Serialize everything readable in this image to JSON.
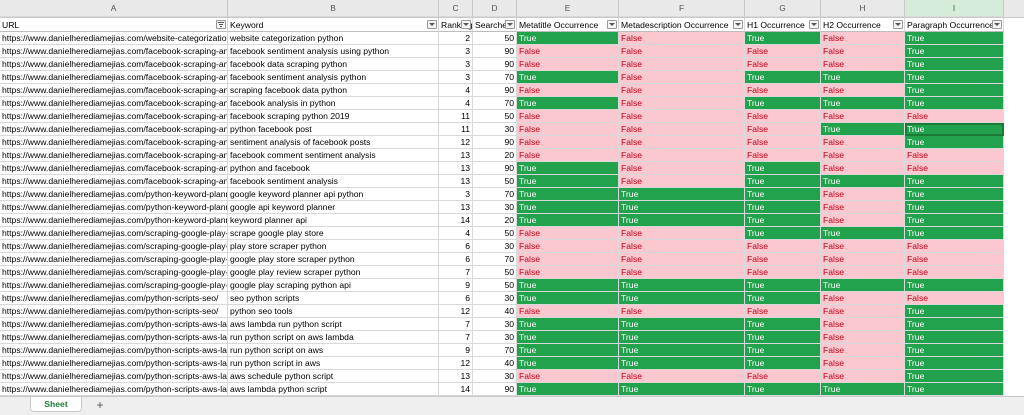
{
  "columns": [
    "A",
    "B",
    "C",
    "D",
    "E",
    "F",
    "G",
    "H",
    "I"
  ],
  "selected_column": "I",
  "headers": [
    "URL",
    "Keyword",
    "Ranking",
    "Searches",
    "Metatitle Occurrence",
    "Metadescription Occurrence",
    "H1 Occurrence",
    "H2 Occurrence",
    "Paragraph Occurrence"
  ],
  "rows": [
    [
      "https://www.danielherediamejias.com/website-categorization-python/",
      "website categorization python",
      "2",
      "50",
      "True",
      "False",
      "True",
      "False",
      "True"
    ],
    [
      "https://www.danielherediamejias.com/facebook-scraping-and-sentiment-analysis-with-python/",
      "facebook sentiment analysis using python",
      "3",
      "90",
      "False",
      "False",
      "False",
      "False",
      "True"
    ],
    [
      "https://www.danielherediamejias.com/facebook-scraping-and-sentiment-analysis-with-python/",
      "facebook data scraping python",
      "3",
      "90",
      "False",
      "False",
      "False",
      "False",
      "True"
    ],
    [
      "https://www.danielherediamejias.com/facebook-scraping-and-sentiment-analysis-with-python/",
      "facebook sentiment analysis python",
      "3",
      "70",
      "True",
      "False",
      "True",
      "True",
      "True"
    ],
    [
      "https://www.danielherediamejias.com/facebook-scraping-and-sentiment-analysis-with-python/",
      "scraping facebook data python",
      "4",
      "90",
      "False",
      "False",
      "False",
      "False",
      "True"
    ],
    [
      "https://www.danielherediamejias.com/facebook-scraping-and-sentiment-analysis-with-python/",
      "facebook analysis in python",
      "4",
      "70",
      "True",
      "False",
      "True",
      "True",
      "True"
    ],
    [
      "https://www.danielherediamejias.com/facebook-scraping-and-sentiment-analysis-with-python/",
      "facebook scraping python 2019",
      "11",
      "50",
      "False",
      "False",
      "False",
      "False",
      "False"
    ],
    [
      "https://www.danielherediamejias.com/facebook-scraping-and-sentiment-analysis-with-python/",
      "python facebook post",
      "11",
      "30",
      "False",
      "False",
      "False",
      "True",
      "True"
    ],
    [
      "https://www.danielherediamejias.com/facebook-scraping-and-sentiment-analysis-with-python/",
      "sentiment analysis of facebook posts",
      "12",
      "90",
      "False",
      "False",
      "False",
      "False",
      "True"
    ],
    [
      "https://www.danielherediamejias.com/facebook-scraping-and-sentiment-analysis-with-python/",
      "facebook comment sentiment analysis",
      "13",
      "20",
      "False",
      "False",
      "False",
      "False",
      "False"
    ],
    [
      "https://www.danielherediamejias.com/facebook-scraping-and-sentiment-analysis-with-python/",
      "python and facebook",
      "13",
      "90",
      "True",
      "False",
      "True",
      "False",
      "False"
    ],
    [
      "https://www.danielherediamejias.com/facebook-scraping-and-sentiment-analysis-with-python/",
      "facebook sentiment analysis",
      "13",
      "50",
      "True",
      "False",
      "True",
      "True",
      "True"
    ],
    [
      "https://www.danielherediamejias.com/python-keyword-planner/",
      "google keyword planner api python",
      "3",
      "70",
      "True",
      "True",
      "True",
      "False",
      "True"
    ],
    [
      "https://www.danielherediamejias.com/python-keyword-planner/",
      "google api keyword planner",
      "13",
      "30",
      "True",
      "True",
      "True",
      "False",
      "True"
    ],
    [
      "https://www.danielherediamejias.com/python-keyword-planner/",
      "keyword planner api",
      "14",
      "20",
      "True",
      "True",
      "True",
      "False",
      "True"
    ],
    [
      "https://www.danielherediamejias.com/scraping-google-play-store/",
      "scrape google play store",
      "4",
      "50",
      "False",
      "False",
      "True",
      "True",
      "True"
    ],
    [
      "https://www.danielherediamejias.com/scraping-google-play-store/",
      "play store scraper python",
      "6",
      "30",
      "False",
      "False",
      "False",
      "False",
      "False"
    ],
    [
      "https://www.danielherediamejias.com/scraping-google-play-store/",
      "google play store scraper python",
      "6",
      "70",
      "False",
      "False",
      "False",
      "False",
      "False"
    ],
    [
      "https://www.danielherediamejias.com/scraping-google-play-store/",
      "google play review scraper python",
      "7",
      "50",
      "False",
      "False",
      "False",
      "False",
      "False"
    ],
    [
      "https://www.danielherediamejias.com/scraping-google-play-store/",
      "google play scraping python api",
      "9",
      "50",
      "True",
      "True",
      "True",
      "True",
      "True"
    ],
    [
      "https://www.danielherediamejias.com/python-scripts-seo/",
      "seo python scripts",
      "6",
      "30",
      "True",
      "True",
      "True",
      "False",
      "False"
    ],
    [
      "https://www.danielherediamejias.com/python-scripts-seo/",
      "python seo tools",
      "12",
      "40",
      "False",
      "False",
      "False",
      "False",
      "True"
    ],
    [
      "https://www.danielherediamejias.com/python-scripts-aws-lambda/",
      "aws lambda run python script",
      "7",
      "30",
      "True",
      "True",
      "True",
      "False",
      "True"
    ],
    [
      "https://www.danielherediamejias.com/python-scripts-aws-lambda/",
      "run python script on aws lambda",
      "7",
      "30",
      "True",
      "True",
      "True",
      "False",
      "True"
    ],
    [
      "https://www.danielherediamejias.com/python-scripts-aws-lambda/",
      "run python script on aws",
      "9",
      "70",
      "True",
      "True",
      "True",
      "False",
      "True"
    ],
    [
      "https://www.danielherediamejias.com/python-scripts-aws-lambda/",
      "run python script in aws",
      "12",
      "40",
      "True",
      "True",
      "True",
      "False",
      "True"
    ],
    [
      "https://www.danielherediamejias.com/python-scripts-aws-lambda/",
      "aws schedule python script",
      "13",
      "30",
      "False",
      "False",
      "False",
      "False",
      "True"
    ],
    [
      "https://www.danielherediamejias.com/python-scripts-aws-lambda/",
      "aws lambda python script",
      "14",
      "90",
      "True",
      "True",
      "True",
      "True",
      "True"
    ]
  ],
  "sheet_tab": "Sheet",
  "add_sheet_icon": "+",
  "colors": {
    "true_bg": "#23a24d",
    "false_bg": "#fcc8cf",
    "false_text": "#c0001a",
    "accent": "#1b7a35"
  }
}
